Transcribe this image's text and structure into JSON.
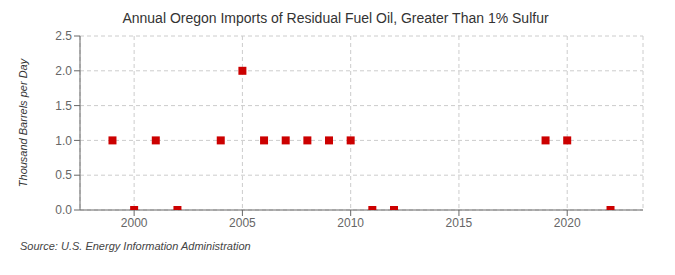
{
  "chart_data": {
    "type": "scatter",
    "title": "Annual Oregon Imports of Residual Fuel Oil, Greater Than 1% Sulfur",
    "ylabel": "Thousand Barrels per Day",
    "annotation": "Source: U.S. Energy Information Administration",
    "x": [
      1999,
      2000,
      2001,
      2002,
      2004,
      2005,
      2006,
      2007,
      2008,
      2009,
      2010,
      2011,
      2012,
      2019,
      2020,
      2022
    ],
    "values": [
      1.0,
      0.0,
      1.0,
      0.0,
      1.0,
      2.0,
      1.0,
      1.0,
      1.0,
      1.0,
      1.0,
      0.0,
      0.0,
      1.0,
      1.0,
      0.0
    ],
    "color": "#cc0000",
    "marker": "square",
    "xlim": [
      1997.5,
      2023.5
    ],
    "ylim": [
      0.0,
      2.5
    ],
    "xticks": [
      2000,
      2005,
      2010,
      2015,
      2020
    ],
    "yticks": [
      {
        "value": 0,
        "label": "0.0"
      },
      0.5,
      {
        "value": 1,
        "label": "1.0"
      },
      1.5,
      {
        "value": 2,
        "label": "2.0"
      },
      2.5
    ],
    "grid": true
  }
}
